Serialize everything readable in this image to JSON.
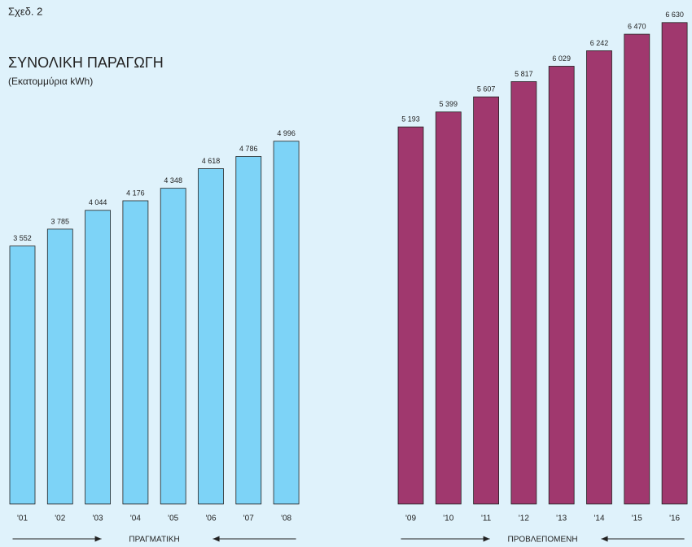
{
  "chart_data": {
    "type": "bar",
    "figure_label": "Σχεδ. 2",
    "title": "ΣΥΝΟΛΙΚΗ ΠΑΡΑΓΩΓΗ",
    "subtitle": "(Εκατομμύρια kWh)",
    "ylim": [
      0,
      6650
    ],
    "series": [
      {
        "name": "ΠΡΑΓΜΑΤΙΚΗ",
        "color": "#7dd3f7",
        "categories": [
          "'01",
          "'02",
          "'03",
          "'04",
          "'05",
          "'06",
          "'07",
          "'08"
        ],
        "values": [
          3552,
          3785,
          4044,
          4176,
          4348,
          4618,
          4786,
          4996
        ],
        "value_labels": [
          "3 552",
          "3 785",
          "4 044",
          "4 176",
          "4 348",
          "4 618",
          "4 786",
          "4 996"
        ]
      },
      {
        "name": "ΠΡΟΒΛΕΠΟΜΕΝΗ",
        "color": "#a0386e",
        "categories": [
          "'09",
          "'10",
          "'11",
          "'12",
          "'13",
          "'14",
          "'15",
          "'16"
        ],
        "values": [
          5193,
          5399,
          5607,
          5817,
          6029,
          6242,
          6470,
          6630
        ],
        "value_labels": [
          "5 193",
          "5 399",
          "5 607",
          "5 817",
          "6 029",
          "6 242",
          "6 470",
          "6 630"
        ]
      }
    ]
  }
}
